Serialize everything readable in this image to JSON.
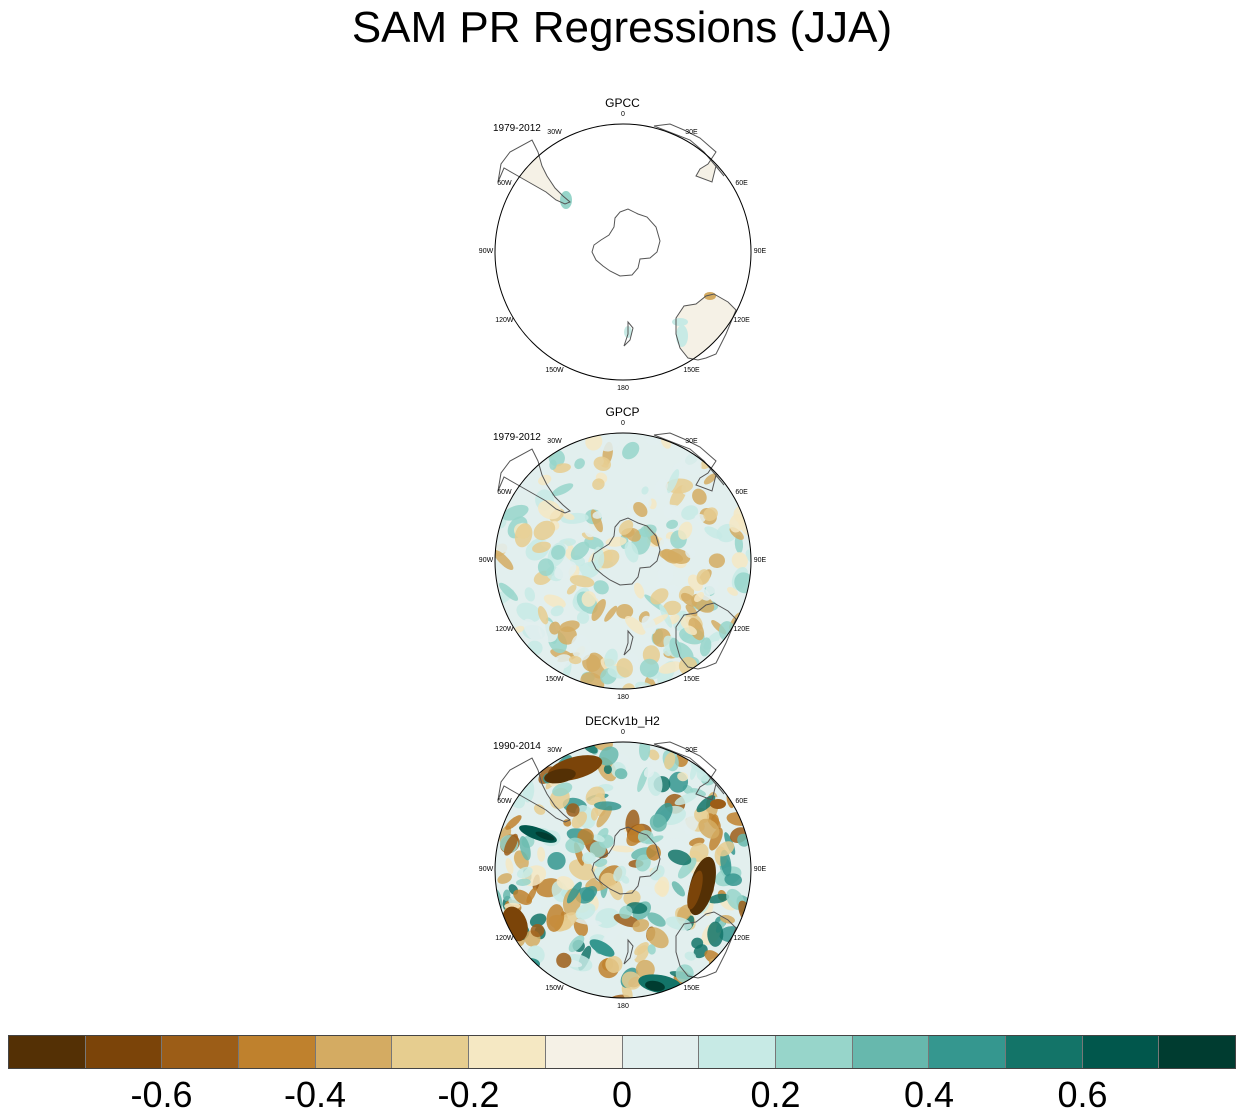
{
  "title": "SAM PR Regressions (JJA)",
  "chart_data": {
    "type": "heatmap",
    "title": "SAM PR Regressions (JJA)",
    "projection": "south polar stereographic",
    "panels": [
      {
        "name": "GPCC",
        "period": "1979-2012",
        "coverage": "land only"
      },
      {
        "name": "GPCP",
        "period": "1979-2012",
        "coverage": "global"
      },
      {
        "name": "DECKv1b_H2",
        "period": "1990-2014",
        "coverage": "global"
      }
    ],
    "longitude_labels": [
      "0",
      "30E",
      "60E",
      "90E",
      "120E",
      "150E",
      "180",
      "150W",
      "120W",
      "90W",
      "60W",
      "30W"
    ],
    "colorbar": {
      "levels": [
        -0.7,
        -0.6,
        -0.5,
        -0.4,
        -0.3,
        -0.2,
        -0.1,
        0,
        0.1,
        0.2,
        0.3,
        0.4,
        0.5,
        0.6,
        0.7
      ],
      "tick_labels": [
        "-0.6",
        "-0.4",
        "-0.2",
        "0",
        "0.2",
        "0.4",
        "0.6"
      ],
      "tick_values": [
        -0.6,
        -0.4,
        -0.2,
        0,
        0.2,
        0.4,
        0.6
      ],
      "colors": [
        "#543005",
        "#7b4409",
        "#9c5d17",
        "#bf812d",
        "#d4ab62",
        "#e6cd8f",
        "#f5e8c3",
        "#f5f1e6",
        "#e2efee",
        "#c7eae5",
        "#97d5ca",
        "#67b8ad",
        "#35978f",
        "#137468",
        "#01574c",
        "#003c30"
      ]
    }
  }
}
